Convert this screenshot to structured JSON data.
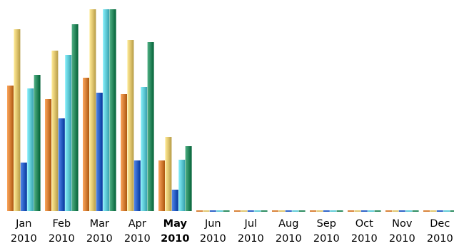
{
  "chart_data": {
    "type": "bar",
    "categories": [
      {
        "month": "Jan",
        "year": "2010",
        "highlight": false
      },
      {
        "month": "Feb",
        "year": "2010",
        "highlight": false
      },
      {
        "month": "Mar",
        "year": "2010",
        "highlight": false
      },
      {
        "month": "Apr",
        "year": "2010",
        "highlight": false
      },
      {
        "month": "May",
        "year": "2010",
        "highlight": true
      },
      {
        "month": "Jun",
        "year": "2010",
        "highlight": false
      },
      {
        "month": "Jul",
        "year": "2010",
        "highlight": false
      },
      {
        "month": "Aug",
        "year": "2010",
        "highlight": false
      },
      {
        "month": "Sep",
        "year": "2010",
        "highlight": false
      },
      {
        "month": "Oct",
        "year": "2010",
        "highlight": false
      },
      {
        "month": "Nov",
        "year": "2010",
        "highlight": false
      },
      {
        "month": "Dec",
        "year": "2010",
        "highlight": false
      }
    ],
    "series": [
      {
        "color": "#d9833a",
        "values": [
          176,
          157,
          187,
          164,
          71,
          0,
          0,
          0,
          0,
          0,
          0,
          0
        ]
      },
      {
        "color": "#e2c872",
        "values": [
          255,
          225,
          283,
          240,
          104,
          0,
          0,
          0,
          0,
          0,
          0,
          0
        ]
      },
      {
        "color": "#2e63c8",
        "values": [
          68,
          130,
          166,
          71,
          30,
          0,
          0,
          0,
          0,
          0,
          0,
          0
        ]
      },
      {
        "color": "#63cdd9",
        "values": [
          172,
          219,
          283,
          174,
          72,
          0,
          0,
          0,
          0,
          0,
          0,
          0
        ]
      },
      {
        "color": "#2e8d62",
        "values": [
          191,
          262,
          283,
          237,
          91,
          0,
          0,
          0,
          0,
          0,
          0,
          0
        ]
      }
    ],
    "ylim": [
      0,
      283
    ],
    "grid": false,
    "legend": "none"
  }
}
